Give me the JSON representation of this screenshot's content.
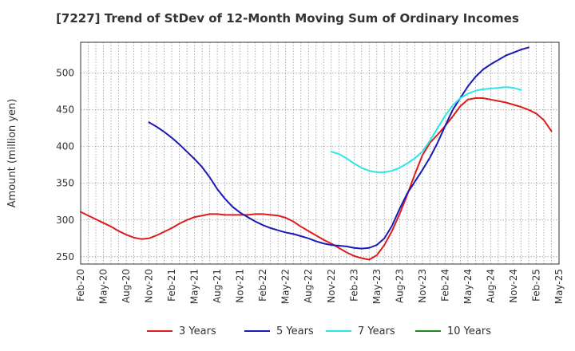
{
  "chart_data": {
    "type": "line",
    "title": "[7227]  Trend of StDev of 12-Month Moving Sum of Ordinary Incomes",
    "ylabel": "Amount (million yen)",
    "xlabel": "",
    "ylim": [
      240,
      542
    ],
    "yticks": [
      250,
      300,
      350,
      400,
      450,
      500
    ],
    "xtick_labels": [
      "Feb-20",
      "May-20",
      "Aug-20",
      "Nov-20",
      "Feb-21",
      "May-21",
      "Aug-21",
      "Nov-21",
      "Feb-22",
      "May-22",
      "Aug-22",
      "Nov-22",
      "Feb-23",
      "May-23",
      "Aug-23",
      "Nov-23",
      "Feb-24",
      "May-24",
      "Aug-24",
      "Nov-24",
      "Feb-25",
      "May-25"
    ],
    "grid": true,
    "legend_position": "bottom",
    "series": [
      {
        "name": "3 Years",
        "color": "#dd1c1c",
        "start": "Feb-20",
        "values": [
          311,
          306,
          301,
          296,
          291,
          285,
          280,
          276,
          274,
          275,
          279,
          284,
          289,
          295,
          300,
          304,
          306,
          308,
          308,
          307,
          307,
          307,
          307,
          308,
          308,
          307,
          306,
          303,
          298,
          291,
          285,
          279,
          273,
          268,
          262,
          256,
          251,
          248,
          246,
          252,
          266,
          285,
          308,
          334,
          362,
          388,
          405,
          416,
          428,
          441,
          455,
          464,
          466,
          466,
          464,
          462,
          460,
          457,
          454,
          450,
          445,
          436,
          421
        ]
      },
      {
        "name": "5 Years",
        "color": "#1a1ab5",
        "start": "Nov-20",
        "values": [
          433,
          427,
          420,
          412,
          403,
          393,
          383,
          372,
          358,
          342,
          329,
          318,
          310,
          304,
          298,
          293,
          289,
          286,
          283,
          281,
          278,
          275,
          271,
          268,
          266,
          265,
          264,
          262,
          261,
          262,
          266,
          275,
          292,
          315,
          336,
          352,
          368,
          385,
          405,
          428,
          450,
          466,
          482,
          495,
          505,
          512,
          518,
          524,
          528,
          532,
          535
        ]
      },
      {
        "name": "7 Years",
        "color": "#2de6e6",
        "start": "Nov-22",
        "values": [
          393,
          390,
          384,
          377,
          371,
          367,
          365,
          365,
          367,
          371,
          377,
          384,
          393,
          408,
          425,
          442,
          456,
          466,
          472,
          476,
          478,
          479,
          480,
          481,
          480,
          477
        ]
      },
      {
        "name": "10 Years",
        "color": "#1e8a1e",
        "start": "Feb-20",
        "values": []
      }
    ]
  }
}
